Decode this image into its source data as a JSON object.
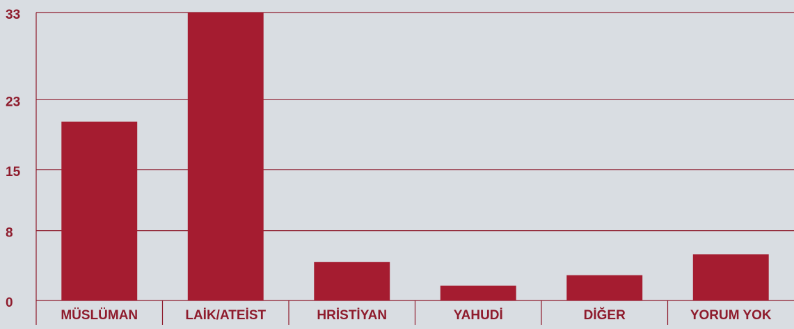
{
  "chart_data": {
    "type": "bar",
    "categories": [
      "MÜSLÜMAN",
      "LAİK/ATEİST",
      "HRİSTİYAN",
      "YAHUDİ",
      "DİĞER",
      "YORUM YOK"
    ],
    "values": [
      20.5,
      33,
      4.4,
      1.7,
      2.9,
      5.3
    ],
    "color": "#a51c30",
    "ylim": [
      0,
      33
    ],
    "yticks": [
      0,
      8,
      15,
      23,
      33
    ],
    "grid": true
  }
}
